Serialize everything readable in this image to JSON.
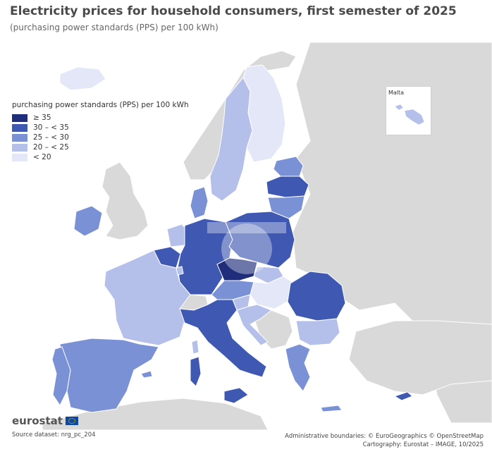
{
  "title": "Electricity prices for household consumers, first semester of 2025",
  "subtitle": "(purchasing power standards (PPS) per 100 kWh)",
  "legend": {
    "title": "purchasing power standards (PPS) per 100 kWh",
    "classes": [
      {
        "label": "≥ 35",
        "color": "#1f2d7a"
      },
      {
        "label": "30 – < 35",
        "color": "#3f58b2"
      },
      {
        "label": "25 – < 30",
        "color": "#7a91d6"
      },
      {
        "label": "20 – < 25",
        "color": "#b4c0ea"
      },
      {
        "label": "< 20",
        "color": "#e3e7f7"
      }
    ]
  },
  "colors": {
    "no_data_land": "#d9d9d9",
    "sea": "#ffffff",
    "border": "#ffffff"
  },
  "inset": {
    "label": "Malta"
  },
  "logo": {
    "text": "eurostat"
  },
  "footer": {
    "source": "Source dataset: nrg_pc_204",
    "credits_line1": "Administrative boundaries: © EuroGeographics © OpenStreetMap",
    "credits_line2": "Cartography: Eurostat – IMAGE, 10/2025"
  }
}
